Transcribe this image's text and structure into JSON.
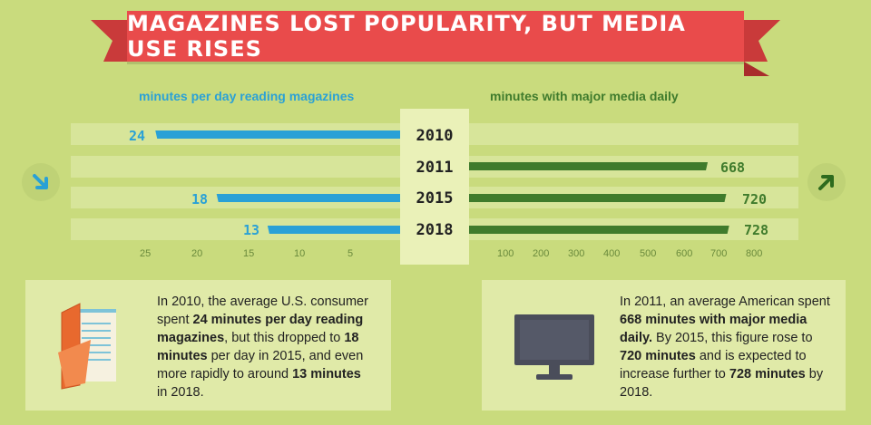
{
  "title": "MAGAZINES LOST POPULARITY, BUT MEDIA USE RISES",
  "colors": {
    "background": "#c9db7d",
    "banner": "#e94b4b",
    "magazines": "#2aa1d6",
    "media": "#3f7b2c"
  },
  "chart_data": [
    {
      "type": "bar",
      "orientation": "horizontal",
      "direction": "right-to-left",
      "title": "minutes per day reading magazines",
      "categories": [
        "2010",
        "2011",
        "2015",
        "2018"
      ],
      "values": [
        24,
        null,
        18,
        13
      ],
      "value_labels": [
        "24",
        "",
        "18",
        "13"
      ],
      "xlim": [
        0,
        27
      ],
      "ticks": [
        25,
        20,
        15,
        10,
        5
      ],
      "tick_labels": [
        "25",
        "20",
        "15",
        "10",
        "5"
      ],
      "color": "#2aa1d6"
    },
    {
      "type": "bar",
      "orientation": "horizontal",
      "direction": "left-to-right",
      "title": "minutes with major media daily",
      "categories": [
        "2010",
        "2011",
        "2015",
        "2018"
      ],
      "values": [
        null,
        668,
        720,
        728
      ],
      "value_labels": [
        "",
        "668",
        "720",
        "728"
      ],
      "xlim": [
        0,
        800
      ],
      "ticks": [
        100,
        200,
        300,
        400,
        500,
        600,
        700,
        800
      ],
      "tick_labels": [
        "100",
        "200",
        "300",
        "400",
        "500",
        "600",
        "700",
        "800"
      ],
      "color": "#3f7b2c"
    }
  ],
  "icons": {
    "left": "arrow-down-right-icon",
    "right": "arrow-up-right-icon",
    "left_panel": "magazine-icon",
    "right_panel": "tv-monitor-icon"
  },
  "left_panel": {
    "t1": "In 2010, the average U.S. consumer spent ",
    "b1": "24 minutes per day reading magazines",
    "t2": ", but this dropped to ",
    "b2": "18 minutes",
    "t3": " per day in 2015, and even more rapidly to around ",
    "b3": "13 minutes",
    "t4": " in 2018."
  },
  "right_panel": {
    "t1": "In 2011, an average American spent ",
    "b1": "668 minutes with major media daily.",
    "t2": " By 2015, this figure rose to ",
    "b2": "720 minutes",
    "t3": " and is expected to increase further to ",
    "b3": "728 minutes",
    "t4": " by 2018."
  }
}
